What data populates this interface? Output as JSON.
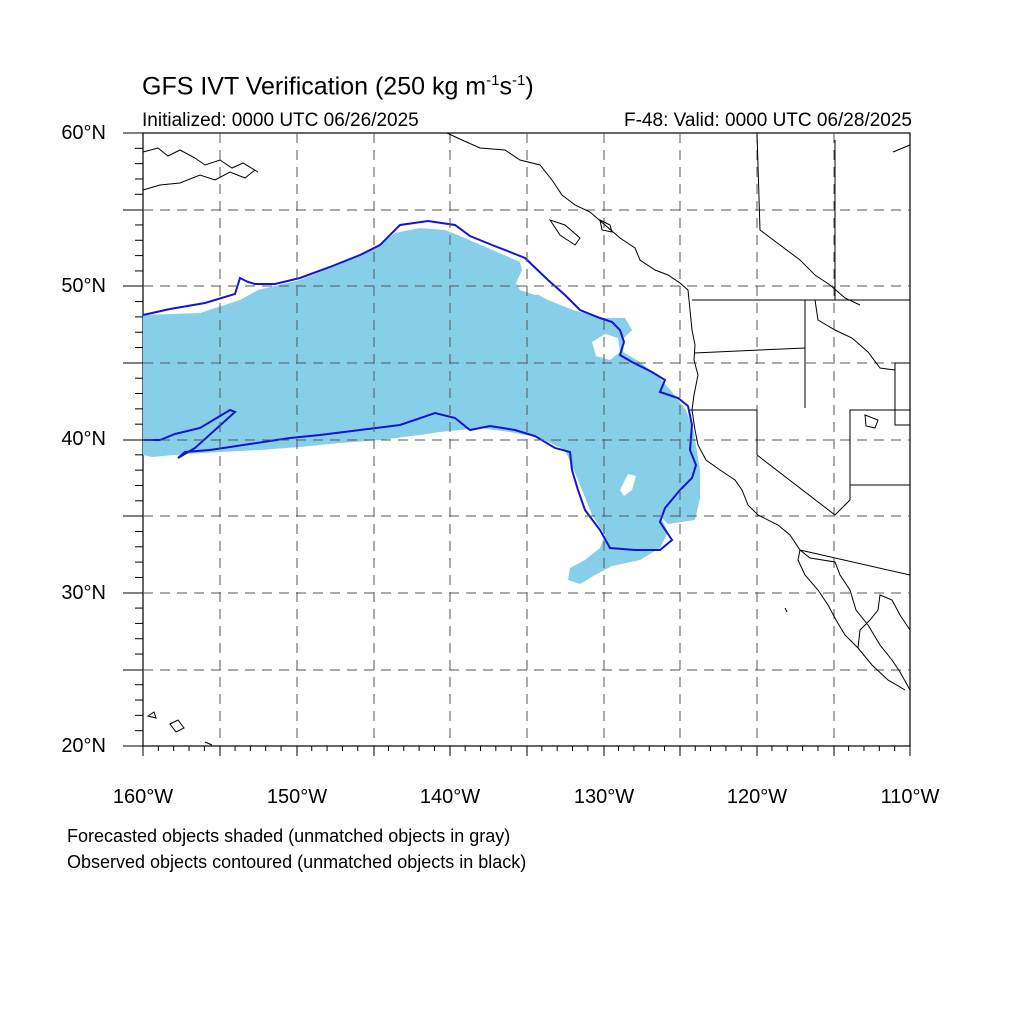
{
  "title": "GFS IVT Verification (250 kg m",
  "title_units_exp1": "-1",
  "title_units_mid": "s",
  "title_units_exp2": "-1",
  "title_close": ")",
  "initialized": "Initialized: 0000 UTC 06/26/2025",
  "valid": "F-48: Valid: 0000 UTC 06/28/2025",
  "lat_labels": [
    "60°N",
    "50°N",
    "40°N",
    "30°N",
    "20°N"
  ],
  "lon_labels": [
    "160°W",
    "150°W",
    "140°W",
    "130°W",
    "120°W",
    "110°W"
  ],
  "notes": [
    "Forecasted objects shaded (unmatched objects in gray)",
    "Observed objects contoured (unmatched objects in black)"
  ],
  "colors": {
    "forecast_fill": "#87cee9",
    "observed_contour": "#1414d2",
    "coastline": "#000000",
    "grid": "#666666"
  },
  "map": {
    "projection": "cylindrical equidistant",
    "lon_range": [
      -160,
      -110
    ],
    "lat_range": [
      20,
      60
    ],
    "grid_interval_deg": 5
  }
}
